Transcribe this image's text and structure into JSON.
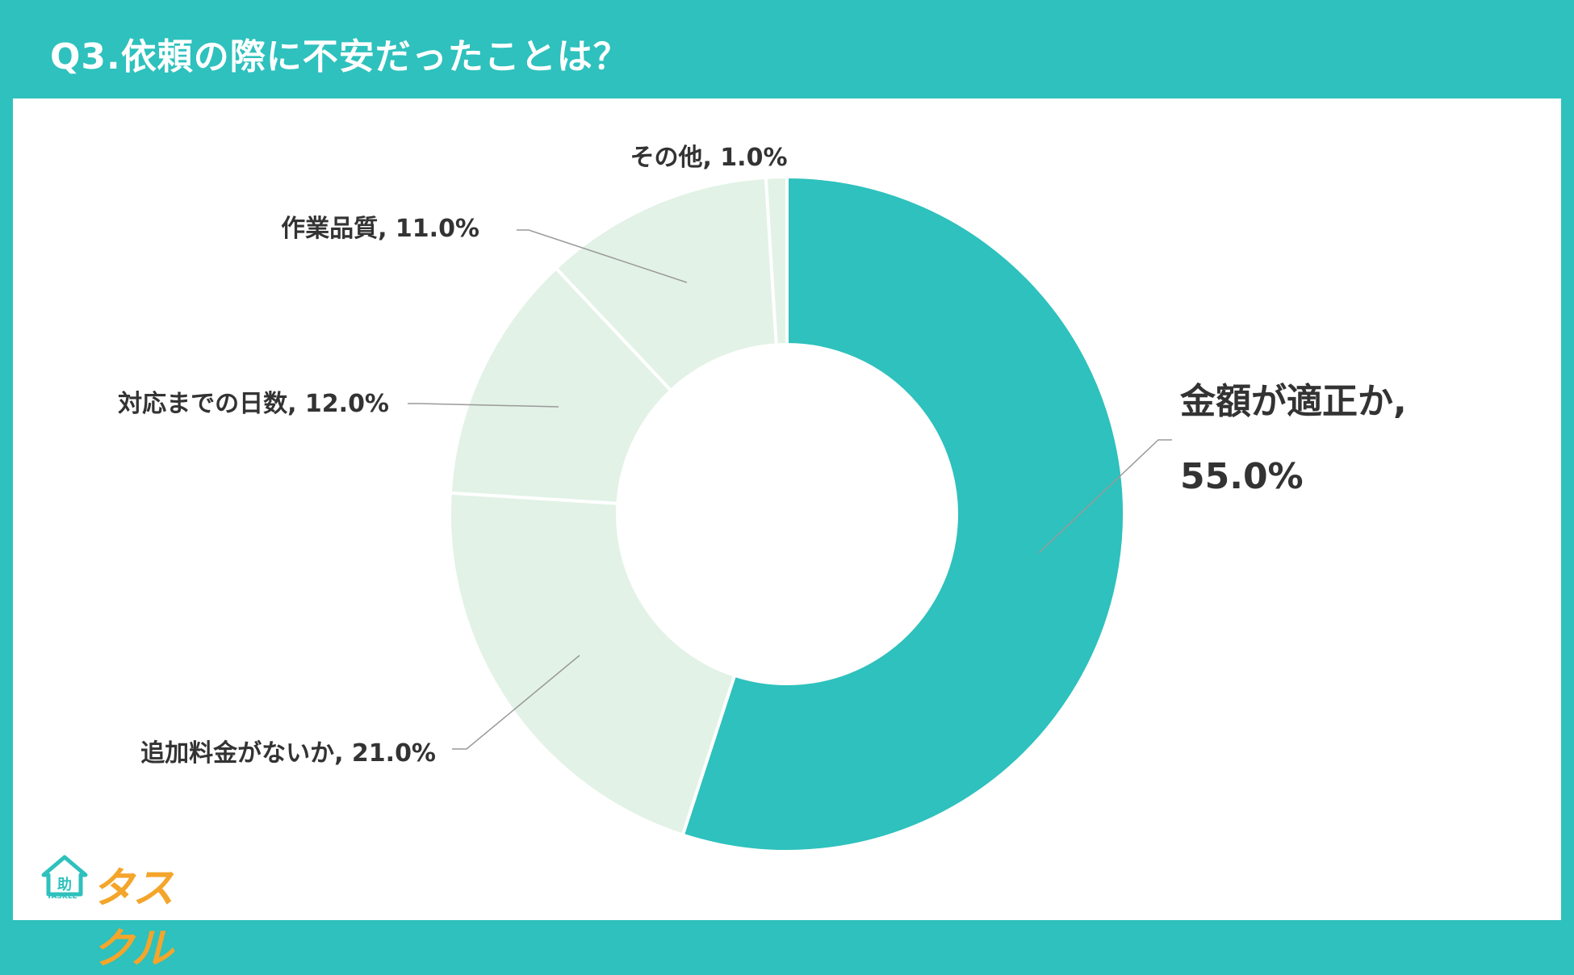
{
  "header": {
    "title": "Q3.依頼の際に不安だったことは？"
  },
  "logo": {
    "text": "タスクル",
    "sub": "TASKLE",
    "badge": "助"
  },
  "colors": {
    "accent": "#2ec1bd",
    "light": "#e2f2e6",
    "text": "#333333"
  },
  "chart_data": {
    "type": "pie",
    "style": "donut",
    "labels_shown": [
      "金額が適正か, 55.0%",
      "作業品質, 11.0%",
      "対応までの日数, 12.0%",
      "追加料金がないか, 21.0%",
      "その他, 1.0%"
    ],
    "slices": [
      {
        "name": "金額が適正か",
        "value": 55.0,
        "label_line1": "金額が適正か,",
        "label_line2": "55.0%",
        "color": "#2ec1bd"
      },
      {
        "name": "追加料金がないか",
        "value": 21.0,
        "label": "追加料金がないか, 21.0%",
        "color": "#e2f2e6"
      },
      {
        "name": "対応までの日数",
        "value": 12.0,
        "label": "対応までの日数, 12.0%",
        "color": "#e2f2e6"
      },
      {
        "name": "作業品質",
        "value": 11.0,
        "label": "作業品質, 11.0%",
        "color": "#e2f2e6"
      },
      {
        "name": "その他",
        "value": 1.0,
        "label": "その他, 1.0%",
        "color": "#e2f2e6"
      }
    ]
  }
}
